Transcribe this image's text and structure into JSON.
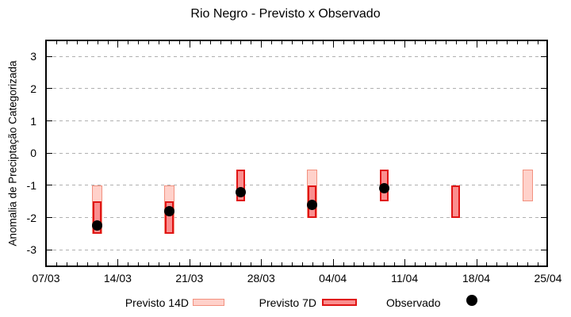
{
  "title": "Rio Negro - Previsto x Observado",
  "y_axis_label": "Anomalia de Preciptação Categorizada",
  "legend": {
    "previsto_14d_label": "Previsto 14D",
    "previsto_7d_label": "Previsto 7D",
    "observado_label": "Observado"
  },
  "colors": {
    "previsto_14d_fill": "#ffd1ca",
    "previsto_14d_border": "#f2917f",
    "previsto_7d_fill": "#fa8f8f",
    "previsto_7d_border": "#e01414",
    "observado": "#000000",
    "grid": "#b0b0b0",
    "axis": "#000000"
  },
  "chart_data": {
    "type": "bar",
    "title": "Rio Negro - Previsto x Observado",
    "xlabel": "",
    "ylabel": "Anomalia de Preciptação Categorizada",
    "ylim": [
      -3.5,
      3.5
    ],
    "y_ticks": [
      3,
      2,
      1,
      0,
      -1,
      -2,
      -3
    ],
    "x_tick_labels": [
      "07/03",
      "14/03",
      "21/03",
      "28/03",
      "04/04",
      "11/04",
      "18/04",
      "25/04"
    ],
    "x_axis_total_days": 49,
    "x_major_tick_every_days": 7,
    "grid": "horizontal dashed lines at each integer y value",
    "legend_position": "below chart",
    "series": [
      {
        "name": "Previsto 14D",
        "type": "range-bar",
        "points": [
          {
            "date": "12/03",
            "day": 5,
            "low": -2.5,
            "high": -1.0
          },
          {
            "date": "19/03",
            "day": 12,
            "low": -2.5,
            "high": -1.0
          },
          {
            "date": "02/04",
            "day": 26,
            "low": -2.0,
            "high": -0.5
          },
          {
            "date": "23/04",
            "day": 47,
            "low": -1.5,
            "high": -0.5
          }
        ]
      },
      {
        "name": "Previsto 7D",
        "type": "range-bar",
        "points": [
          {
            "date": "12/03",
            "day": 5,
            "low": -2.5,
            "high": -1.5
          },
          {
            "date": "19/03",
            "day": 12,
            "low": -2.5,
            "high": -1.5
          },
          {
            "date": "26/03",
            "day": 19,
            "low": -1.5,
            "high": -0.5
          },
          {
            "date": "02/04",
            "day": 26,
            "low": -2.0,
            "high": -1.0
          },
          {
            "date": "09/04",
            "day": 33,
            "low": -1.5,
            "high": -0.5
          },
          {
            "date": "16/04",
            "day": 40,
            "low": -2.0,
            "high": -1.0
          }
        ]
      },
      {
        "name": "Observado",
        "type": "scatter",
        "points": [
          {
            "date": "12/03",
            "day": 5,
            "value": -2.25
          },
          {
            "date": "19/03",
            "day": 12,
            "value": -1.8
          },
          {
            "date": "26/03",
            "day": 19,
            "value": -1.2
          },
          {
            "date": "02/04",
            "day": 26,
            "value": -1.6
          },
          {
            "date": "09/04",
            "day": 33,
            "value": -1.1
          }
        ]
      }
    ]
  }
}
